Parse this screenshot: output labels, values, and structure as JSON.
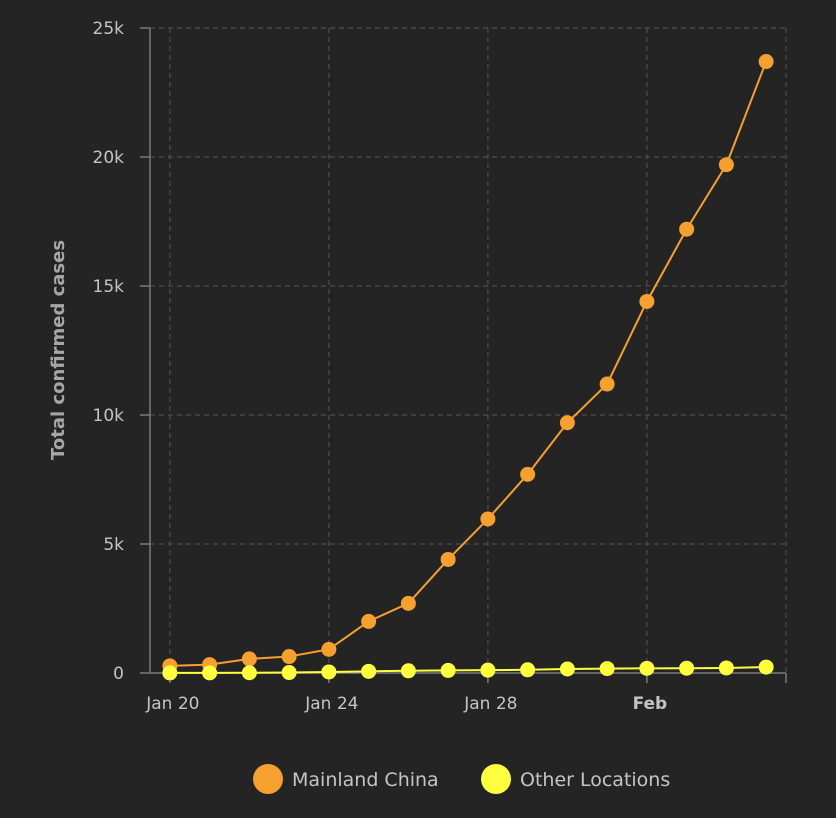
{
  "chart_data": {
    "type": "line",
    "title": "",
    "xlabel": "",
    "ylabel": "Total confirmed cases",
    "x_ticks": [
      {
        "label": "Jan 20",
        "day": 0,
        "bold": false
      },
      {
        "label": "Jan 24",
        "day": 4,
        "bold": false
      },
      {
        "label": "Jan 28",
        "day": 8,
        "bold": false
      },
      {
        "label": "Feb",
        "day": 12,
        "bold": true
      }
    ],
    "xlim": [
      -0.5,
      15.5
    ],
    "ylim": [
      0,
      25000
    ],
    "y_ticks": [
      {
        "label": "0",
        "value": 0
      },
      {
        "label": "5k",
        "value": 5000
      },
      {
        "label": "10k",
        "value": 10000
      },
      {
        "label": "15k",
        "value": 15000
      },
      {
        "label": "20k",
        "value": 20000
      },
      {
        "label": "25k",
        "value": 25000
      }
    ],
    "x": [
      "Jan 20",
      "Jan 21",
      "Jan 22",
      "Jan 23",
      "Jan 24",
      "Jan 25",
      "Jan 26",
      "Jan 27",
      "Jan 28",
      "Jan 29",
      "Jan 30",
      "Jan 31",
      "Feb 1",
      "Feb 2",
      "Feb 3",
      "Feb 4"
    ],
    "series": [
      {
        "name": "Mainland China",
        "color": "#f5a02f",
        "values": [
          278,
          326,
          547,
          639,
          916,
          2000,
          2700,
          4400,
          5970,
          7700,
          9700,
          11200,
          14400,
          17200,
          19700,
          23700
        ]
      },
      {
        "name": "Other Locations",
        "color": "#ffff40",
        "values": [
          4,
          7,
          10,
          19,
          40,
          65,
          85,
          100,
          110,
          125,
          155,
          170,
          180,
          185,
          195,
          230
        ]
      }
    ],
    "grid": true,
    "legend_position": "bottom-center"
  }
}
